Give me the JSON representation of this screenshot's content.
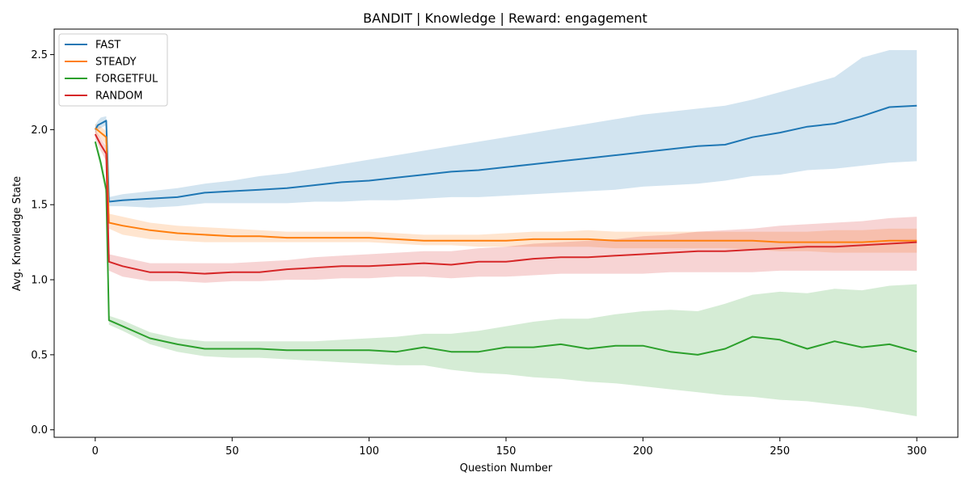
{
  "chart_data": {
    "type": "line",
    "title": "BANDIT | Knowledge | Reward: engagement",
    "xlabel": "Question Number",
    "ylabel": "Avg. Knowledge State",
    "xlim": [
      -15,
      315
    ],
    "ylim": [
      -0.05,
      2.67
    ],
    "xticks": [
      0,
      50,
      100,
      150,
      200,
      250,
      300
    ],
    "yticks": [
      0.0,
      0.5,
      1.0,
      1.5,
      2.0,
      2.5
    ],
    "grid": false,
    "legend_position": "top-left",
    "series": [
      {
        "name": "FAST",
        "color": "#1f77b4",
        "x": [
          0,
          1,
          2,
          4,
          5,
          10,
          20,
          30,
          40,
          50,
          60,
          70,
          80,
          90,
          100,
          110,
          120,
          130,
          140,
          150,
          160,
          170,
          180,
          190,
          200,
          210,
          220,
          230,
          240,
          250,
          260,
          270,
          280,
          290,
          300
        ],
        "y": [
          2.0,
          2.03,
          2.04,
          2.06,
          1.52,
          1.53,
          1.54,
          1.55,
          1.58,
          1.59,
          1.6,
          1.61,
          1.63,
          1.65,
          1.66,
          1.68,
          1.7,
          1.72,
          1.73,
          1.75,
          1.77,
          1.79,
          1.81,
          1.83,
          1.85,
          1.87,
          1.89,
          1.9,
          1.95,
          1.98,
          2.02,
          2.04,
          2.09,
          2.15,
          2.16
        ],
        "lower": [
          1.98,
          2.0,
          2.01,
          2.03,
          1.49,
          1.49,
          1.48,
          1.49,
          1.51,
          1.51,
          1.51,
          1.51,
          1.52,
          1.52,
          1.53,
          1.53,
          1.54,
          1.55,
          1.55,
          1.56,
          1.57,
          1.58,
          1.59,
          1.6,
          1.62,
          1.63,
          1.64,
          1.66,
          1.69,
          1.7,
          1.73,
          1.74,
          1.76,
          1.78,
          1.79
        ],
        "upper": [
          2.03,
          2.06,
          2.08,
          2.09,
          1.55,
          1.57,
          1.59,
          1.61,
          1.64,
          1.66,
          1.69,
          1.71,
          1.74,
          1.77,
          1.8,
          1.83,
          1.86,
          1.89,
          1.92,
          1.95,
          1.98,
          2.01,
          2.04,
          2.07,
          2.1,
          2.12,
          2.14,
          2.16,
          2.2,
          2.25,
          2.3,
          2.35,
          2.48,
          2.53,
          2.53
        ]
      },
      {
        "name": "STEADY",
        "color": "#ff7f0e",
        "x": [
          0,
          2,
          4,
          5,
          10,
          20,
          30,
          40,
          50,
          60,
          70,
          80,
          90,
          100,
          110,
          120,
          130,
          140,
          150,
          160,
          170,
          180,
          190,
          200,
          210,
          220,
          230,
          240,
          250,
          260,
          270,
          280,
          290,
          300
        ],
        "y": [
          2.01,
          1.98,
          1.95,
          1.38,
          1.36,
          1.33,
          1.31,
          1.3,
          1.29,
          1.29,
          1.28,
          1.28,
          1.28,
          1.28,
          1.27,
          1.26,
          1.26,
          1.26,
          1.26,
          1.27,
          1.27,
          1.27,
          1.26,
          1.26,
          1.26,
          1.26,
          1.26,
          1.26,
          1.25,
          1.25,
          1.25,
          1.25,
          1.26,
          1.26
        ],
        "lower": [
          1.98,
          1.94,
          1.9,
          1.34,
          1.3,
          1.27,
          1.26,
          1.25,
          1.25,
          1.25,
          1.25,
          1.25,
          1.25,
          1.25,
          1.24,
          1.23,
          1.23,
          1.22,
          1.22,
          1.22,
          1.22,
          1.22,
          1.21,
          1.21,
          1.21,
          1.21,
          1.21,
          1.2,
          1.19,
          1.19,
          1.18,
          1.18,
          1.18,
          1.18
        ],
        "upper": [
          2.04,
          2.02,
          1.99,
          1.44,
          1.42,
          1.38,
          1.36,
          1.35,
          1.34,
          1.33,
          1.32,
          1.32,
          1.32,
          1.32,
          1.31,
          1.3,
          1.3,
          1.3,
          1.31,
          1.32,
          1.32,
          1.33,
          1.32,
          1.32,
          1.32,
          1.32,
          1.32,
          1.32,
          1.32,
          1.32,
          1.33,
          1.33,
          1.34,
          1.34
        ]
      },
      {
        "name": "FORGETFUL",
        "color": "#2ca02c",
        "x": [
          0,
          2,
          4,
          5,
          10,
          20,
          30,
          40,
          50,
          60,
          70,
          80,
          90,
          100,
          110,
          120,
          130,
          140,
          150,
          160,
          170,
          180,
          190,
          200,
          210,
          220,
          230,
          240,
          250,
          260,
          270,
          280,
          290,
          300
        ],
        "y": [
          1.92,
          1.78,
          1.6,
          0.73,
          0.69,
          0.61,
          0.57,
          0.54,
          0.54,
          0.54,
          0.53,
          0.53,
          0.53,
          0.53,
          0.52,
          0.55,
          0.52,
          0.52,
          0.55,
          0.55,
          0.57,
          0.54,
          0.56,
          0.56,
          0.52,
          0.5,
          0.54,
          0.62,
          0.6,
          0.54,
          0.59,
          0.55,
          0.57,
          0.52
        ],
        "lower": [
          1.9,
          1.74,
          1.55,
          0.7,
          0.66,
          0.57,
          0.52,
          0.49,
          0.48,
          0.48,
          0.47,
          0.46,
          0.45,
          0.44,
          0.43,
          0.43,
          0.4,
          0.38,
          0.37,
          0.35,
          0.34,
          0.32,
          0.31,
          0.29,
          0.27,
          0.25,
          0.23,
          0.22,
          0.2,
          0.19,
          0.17,
          0.15,
          0.12,
          0.09
        ],
        "upper": [
          1.94,
          1.81,
          1.64,
          0.76,
          0.73,
          0.65,
          0.61,
          0.59,
          0.59,
          0.59,
          0.59,
          0.59,
          0.6,
          0.61,
          0.62,
          0.64,
          0.64,
          0.66,
          0.69,
          0.72,
          0.74,
          0.74,
          0.77,
          0.79,
          0.8,
          0.79,
          0.84,
          0.9,
          0.92,
          0.91,
          0.94,
          0.93,
          0.96,
          0.97
        ]
      },
      {
        "name": "RANDOM",
        "color": "#d62728",
        "x": [
          0,
          2,
          4,
          5,
          10,
          20,
          30,
          40,
          50,
          60,
          70,
          80,
          90,
          100,
          110,
          120,
          130,
          140,
          150,
          160,
          170,
          180,
          190,
          200,
          210,
          220,
          230,
          240,
          250,
          260,
          270,
          280,
          290,
          300
        ],
        "y": [
          1.97,
          1.9,
          1.84,
          1.12,
          1.09,
          1.05,
          1.05,
          1.04,
          1.05,
          1.05,
          1.07,
          1.08,
          1.09,
          1.09,
          1.1,
          1.11,
          1.1,
          1.12,
          1.12,
          1.14,
          1.15,
          1.15,
          1.16,
          1.17,
          1.18,
          1.19,
          1.19,
          1.2,
          1.21,
          1.22,
          1.22,
          1.23,
          1.24,
          1.25
        ],
        "lower": [
          1.94,
          1.86,
          1.79,
          1.06,
          1.02,
          0.99,
          0.99,
          0.98,
          0.99,
          0.99,
          1.0,
          1.0,
          1.01,
          1.01,
          1.02,
          1.02,
          1.01,
          1.02,
          1.02,
          1.03,
          1.04,
          1.04,
          1.04,
          1.04,
          1.05,
          1.05,
          1.05,
          1.05,
          1.06,
          1.06,
          1.06,
          1.06,
          1.06,
          1.06
        ],
        "upper": [
          2.0,
          1.94,
          1.89,
          1.17,
          1.15,
          1.11,
          1.11,
          1.11,
          1.11,
          1.12,
          1.13,
          1.15,
          1.16,
          1.17,
          1.18,
          1.19,
          1.19,
          1.21,
          1.22,
          1.24,
          1.25,
          1.26,
          1.27,
          1.29,
          1.3,
          1.32,
          1.33,
          1.34,
          1.36,
          1.37,
          1.38,
          1.39,
          1.41,
          1.42
        ]
      }
    ]
  }
}
